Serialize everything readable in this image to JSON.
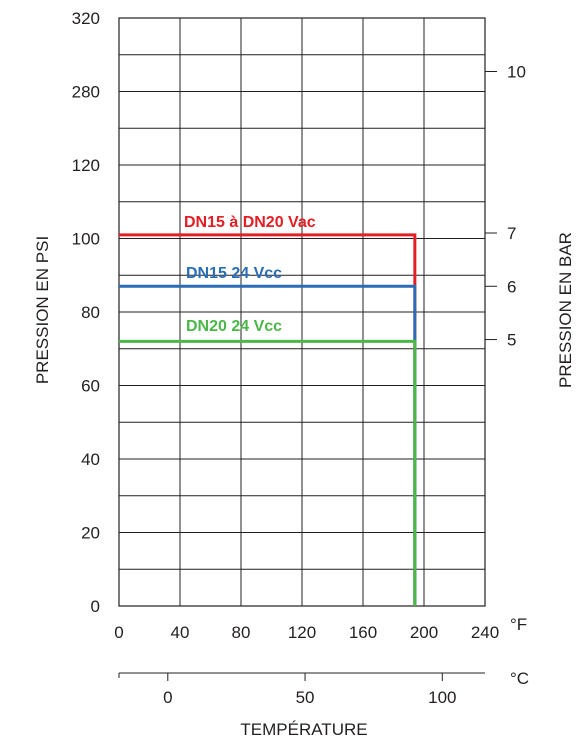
{
  "chart_data": {
    "type": "line",
    "x_axis_label": "TEMPÉRATURE",
    "x_unit_f": "°F",
    "x_unit_c": "°C",
    "x_ticks_f": [
      "0",
      "40",
      "80",
      "120",
      "160",
      "200",
      "240"
    ],
    "x_ticks_c": [
      "0",
      "50",
      "100"
    ],
    "y_axis_label_left": "PRESSION EN PSI",
    "y_axis_label_right": "PRESSION EN BAR",
    "y_ticks_left": [
      "0",
      "20",
      "40",
      "60",
      "80",
      "100",
      "120",
      "280",
      "320"
    ],
    "y_ticks_right": [
      "5",
      "6",
      "7",
      "10"
    ],
    "x_range_f": [
      0,
      240
    ],
    "grid": true,
    "series": [
      {
        "name": "DN15 à DN20 Vac",
        "color": "#e31e24",
        "pressure_psi": 101,
        "max_temp_f": 194
      },
      {
        "name": "DN15 24 Vcc",
        "color": "#2a6db5",
        "pressure_psi": 87,
        "max_temp_f": 194
      },
      {
        "name": "DN20 24 Vcc",
        "color": "#4cb748",
        "pressure_psi": 72,
        "max_temp_f": 194
      }
    ]
  }
}
